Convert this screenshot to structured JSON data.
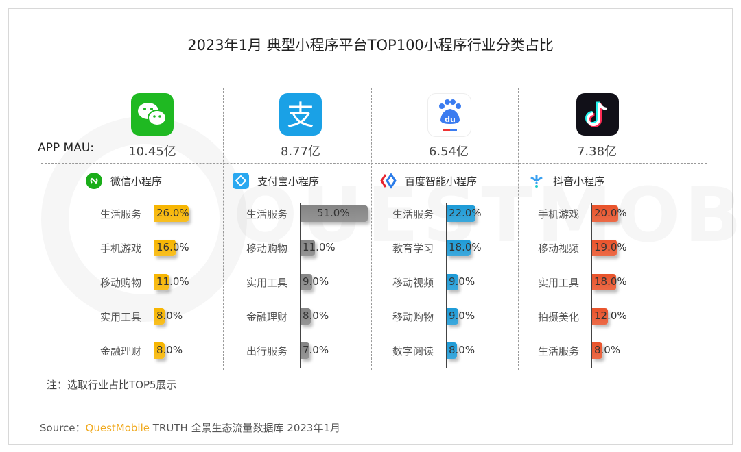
{
  "title": "2023年1月 典型小程序平台TOP100小程序行业分类占比",
  "mau_label": "APP MAU:",
  "watermark": "QUESTMOBILE",
  "chart_data": [
    {
      "type": "bar",
      "app": "微信",
      "mau": "10.45亿",
      "platform": "微信小程序",
      "color": "#F7B500",
      "categories": [
        "生活服务",
        "手机游戏",
        "移动购物",
        "实用工具",
        "金融理财"
      ],
      "values": [
        26.0,
        16.0,
        11.0,
        8.0,
        8.0
      ],
      "labels": [
        "26.0%",
        "16.0%",
        "11.0%",
        "8.0%",
        "8.0%"
      ]
    },
    {
      "type": "bar",
      "app": "支付宝",
      "mau": "8.77亿",
      "platform": "支付宝小程序",
      "color": "#858585",
      "categories": [
        "生活服务",
        "移动购物",
        "实用工具",
        "金融理财",
        "出行服务"
      ],
      "values": [
        51.0,
        11.0,
        9.0,
        8.0,
        7.0
      ],
      "labels": [
        "51.0%",
        "11.0%",
        "9.0%",
        "8.0%",
        "7.0%"
      ]
    },
    {
      "type": "bar",
      "app": "百度",
      "mau": "6.54亿",
      "platform": "百度智能小程序",
      "color": "#1E9BD7",
      "categories": [
        "生活服务",
        "教育学习",
        "移动视频",
        "移动购物",
        "数字阅读"
      ],
      "values": [
        22.0,
        18.0,
        9.0,
        9.0,
        8.0
      ],
      "labels": [
        "22.0%",
        "18.0%",
        "9.0%",
        "9.0%",
        "8.0%"
      ]
    },
    {
      "type": "bar",
      "app": "抖音",
      "mau": "7.38亿",
      "platform": "抖音小程序",
      "color": "#E9532B",
      "categories": [
        "手机游戏",
        "移动视频",
        "实用工具",
        "拍摄美化",
        "生活服务"
      ],
      "values": [
        20.0,
        19.0,
        18.0,
        12.0,
        8.0
      ],
      "labels": [
        "20.0%",
        "19.0%",
        "18.0%",
        "12.0%",
        "8.0%"
      ]
    }
  ],
  "note": "注：选取行业占比TOP5展示",
  "source": {
    "prefix": "Source：",
    "brand": "QuestMobile",
    "rest": " TRUTH 全景生态流量数据库 2023年1月"
  }
}
